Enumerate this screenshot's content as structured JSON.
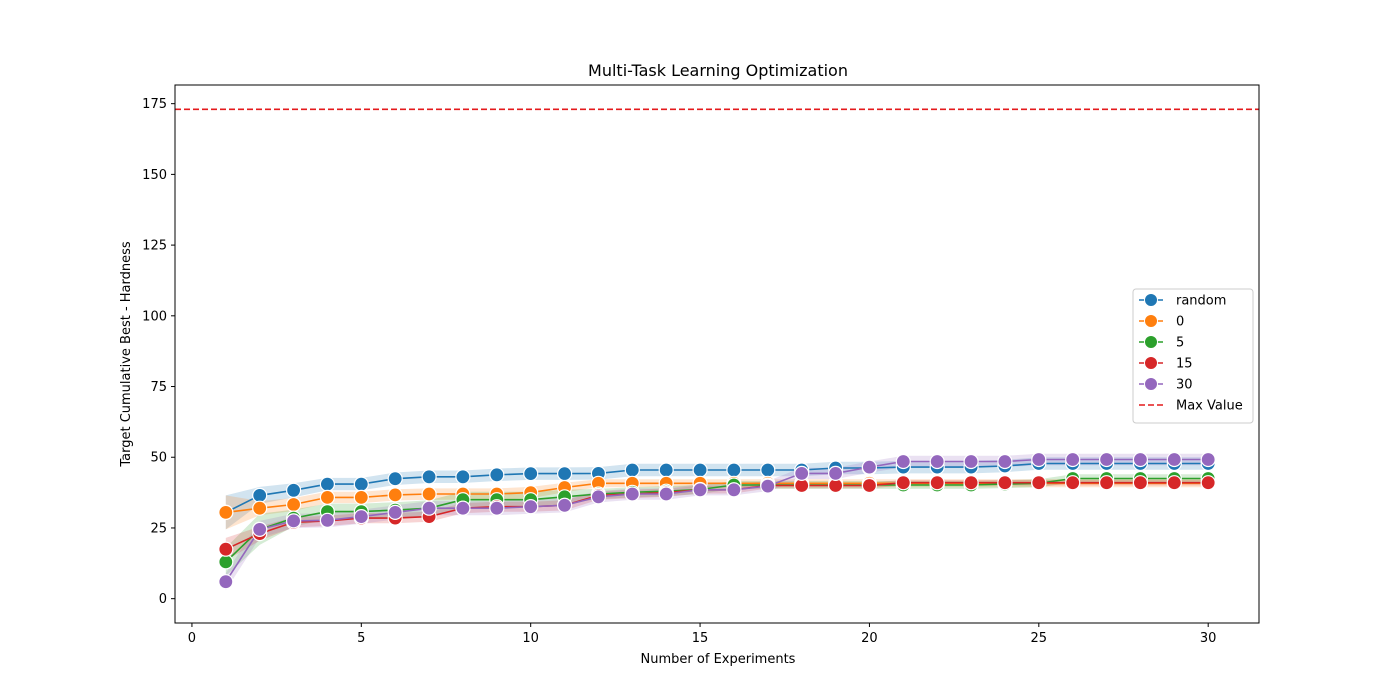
{
  "chart_data": {
    "type": "line",
    "title": "Multi-Task Learning Optimization",
    "xlabel": "Number of Experiments",
    "ylabel": "Target Cumulative Best - Hardness",
    "xlim": [
      -0.5,
      31.5
    ],
    "ylim": [
      -8.6,
      181.6
    ],
    "xticks": [
      0,
      5,
      10,
      15,
      20,
      25,
      30
    ],
    "yticks": [
      0,
      25,
      50,
      75,
      100,
      125,
      150,
      175
    ],
    "grid": false,
    "legend_position": "center-right",
    "x": [
      1,
      2,
      3,
      4,
      5,
      6,
      7,
      8,
      9,
      10,
      11,
      12,
      13,
      14,
      15,
      16,
      17,
      18,
      19,
      20,
      21,
      22,
      23,
      24,
      25,
      26,
      27,
      28,
      29,
      30
    ],
    "series": [
      {
        "name": "random",
        "color": "#1f77b4",
        "values": [
          30.5,
          36.5,
          38.3,
          40.5,
          40.5,
          42.4,
          43.1,
          43.1,
          43.8,
          44.2,
          44.2,
          44.3,
          45.5,
          45.5,
          45.5,
          45.5,
          45.5,
          45.5,
          46.2,
          46.2,
          46.5,
          46.5,
          46.5,
          46.9,
          47.8,
          47.8,
          47.8,
          47.8,
          47.8,
          47.8
        ],
        "lower": [
          24.5,
          33.5,
          35.8,
          38.3,
          38.3,
          40.2,
          40.9,
          40.9,
          41.6,
          42.0,
          42.0,
          42.1,
          43.3,
          43.3,
          43.3,
          43.3,
          43.3,
          43.3,
          44.0,
          44.0,
          44.3,
          44.3,
          44.3,
          44.7,
          45.6,
          45.6,
          45.6,
          45.6,
          45.6,
          45.6
        ],
        "upper": [
          36.5,
          39.5,
          40.8,
          42.7,
          42.7,
          44.6,
          45.3,
          45.3,
          46.0,
          46.4,
          46.4,
          46.5,
          47.7,
          47.7,
          47.7,
          47.7,
          47.7,
          47.7,
          48.4,
          48.4,
          48.7,
          48.7,
          48.7,
          49.1,
          50.0,
          50.0,
          50.0,
          50.0,
          50.0,
          50.0
        ]
      },
      {
        "name": "0",
        "color": "#ff7f0e",
        "values": [
          30.5,
          32.0,
          33.3,
          35.8,
          35.8,
          36.7,
          37.0,
          37.0,
          37.0,
          37.5,
          39.3,
          40.8,
          40.8,
          40.8,
          40.8,
          40.8,
          40.8,
          40.8,
          40.8,
          40.8,
          40.8,
          40.8,
          40.8,
          40.8,
          40.8,
          40.8,
          40.8,
          40.8,
          40.8,
          40.8
        ],
        "lower": [
          24.5,
          29.5,
          31.0,
          33.8,
          33.8,
          34.7,
          35.0,
          35.0,
          35.0,
          35.5,
          37.6,
          39.4,
          39.4,
          39.4,
          39.4,
          39.4,
          39.4,
          39.4,
          39.4,
          39.4,
          39.4,
          39.4,
          39.4,
          39.4,
          39.4,
          39.4,
          39.4,
          39.4,
          39.4,
          39.4
        ],
        "upper": [
          36.5,
          34.5,
          35.6,
          37.8,
          37.8,
          38.7,
          39.0,
          39.0,
          39.0,
          39.5,
          41.0,
          42.2,
          42.2,
          42.2,
          42.2,
          42.2,
          42.2,
          42.2,
          42.2,
          42.2,
          42.2,
          42.2,
          42.2,
          42.2,
          42.2,
          42.2,
          42.2,
          42.2,
          42.2,
          42.2
        ]
      },
      {
        "name": "5",
        "color": "#2ca02c",
        "values": [
          13.0,
          24.5,
          28.5,
          30.8,
          30.8,
          31.3,
          32.0,
          35.0,
          35.0,
          35.0,
          36.0,
          37.0,
          37.6,
          38.0,
          38.6,
          40.2,
          40.2,
          40.2,
          40.2,
          40.2,
          40.2,
          40.2,
          40.2,
          40.5,
          40.8,
          42.5,
          42.5,
          42.5,
          42.5,
          42.5
        ],
        "lower": [
          8.0,
          19.0,
          25.5,
          28.0,
          28.0,
          28.5,
          29.2,
          32.2,
          32.2,
          32.2,
          33.5,
          35.2,
          35.8,
          36.2,
          37.0,
          38.8,
          38.8,
          38.8,
          38.8,
          38.8,
          38.8,
          38.8,
          38.8,
          39.1,
          39.4,
          41.0,
          41.0,
          41.0,
          41.0,
          41.0
        ],
        "upper": [
          18.0,
          30.0,
          31.5,
          33.6,
          33.6,
          34.1,
          34.8,
          37.8,
          37.8,
          37.8,
          38.5,
          38.8,
          39.4,
          39.8,
          40.2,
          41.6,
          41.6,
          41.6,
          41.6,
          41.6,
          41.6,
          41.6,
          41.6,
          41.9,
          42.2,
          44.0,
          44.0,
          44.0,
          44.0,
          44.0
        ]
      },
      {
        "name": "15",
        "color": "#d62728",
        "values": [
          17.5,
          23.0,
          27.0,
          27.5,
          28.5,
          28.5,
          29.0,
          32.0,
          32.5,
          32.5,
          33.0,
          36.5,
          37.0,
          37.5,
          38.5,
          38.5,
          40.0,
          40.0,
          40.0,
          40.0,
          41.0,
          41.0,
          41.0,
          41.0,
          41.0,
          41.0,
          41.0,
          41.0,
          41.0,
          41.0
        ],
        "lower": [
          13.5,
          20.5,
          25.2,
          25.7,
          26.7,
          26.7,
          27.2,
          30.2,
          30.7,
          30.7,
          31.2,
          35.0,
          35.5,
          36.0,
          37.2,
          37.2,
          39.0,
          39.0,
          39.0,
          39.0,
          40.0,
          40.0,
          40.0,
          40.0,
          40.0,
          40.0,
          40.0,
          40.0,
          40.0,
          40.0
        ],
        "upper": [
          21.5,
          25.5,
          28.8,
          29.3,
          30.3,
          30.3,
          30.8,
          33.8,
          34.3,
          34.3,
          34.8,
          38.0,
          38.5,
          39.0,
          39.8,
          39.8,
          41.0,
          41.0,
          41.0,
          41.0,
          42.0,
          42.0,
          42.0,
          42.0,
          42.0,
          42.0,
          42.0,
          42.0,
          42.0,
          42.0
        ]
      },
      {
        "name": "30",
        "color": "#9467bd",
        "values": [
          6.0,
          24.5,
          27.5,
          27.7,
          29.0,
          30.5,
          32.0,
          32.0,
          32.0,
          32.5,
          33.0,
          36.0,
          37.0,
          37.0,
          38.5,
          38.5,
          39.8,
          44.3,
          44.3,
          46.5,
          48.5,
          48.5,
          48.5,
          48.5,
          49.2,
          49.2,
          49.2,
          49.2,
          49.2,
          49.2
        ],
        "lower": [
          3.0,
          21.5,
          25.0,
          25.2,
          26.5,
          28.0,
          29.5,
          29.5,
          29.5,
          30.0,
          30.5,
          34.0,
          35.0,
          35.0,
          36.5,
          36.5,
          38.0,
          42.3,
          42.3,
          44.5,
          46.5,
          46.5,
          46.5,
          46.5,
          47.2,
          47.2,
          47.2,
          47.2,
          47.2,
          47.2
        ],
        "upper": [
          9.0,
          27.5,
          30.0,
          30.2,
          31.5,
          33.0,
          34.5,
          34.5,
          34.5,
          35.0,
          35.5,
          38.0,
          39.0,
          39.0,
          40.5,
          40.5,
          41.6,
          46.3,
          46.3,
          48.5,
          50.5,
          50.5,
          50.5,
          50.5,
          51.2,
          51.2,
          51.2,
          51.2,
          51.2,
          51.2
        ]
      }
    ],
    "reference_line": {
      "name": "Max Value",
      "y": 173,
      "color": "#e41a1c",
      "style": "dashed"
    }
  }
}
